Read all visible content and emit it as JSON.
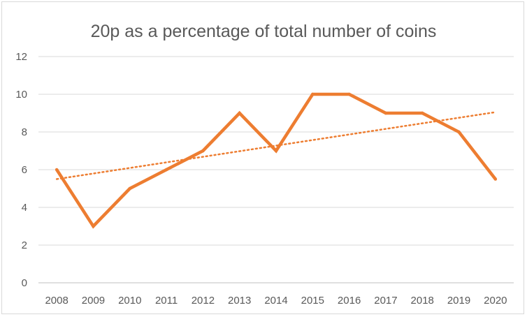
{
  "chart_data": {
    "type": "line",
    "title": "20p as a percentage of total number of coins",
    "xlabel": "",
    "ylabel": "",
    "categories": [
      "2008",
      "2009",
      "2010",
      "2011",
      "2012",
      "2013",
      "2014",
      "2015",
      "2016",
      "2017",
      "2018",
      "2019",
      "2020"
    ],
    "series": [
      {
        "values": [
          6,
          3,
          5,
          6,
          7,
          9,
          7,
          10,
          10,
          9,
          9,
          8,
          5.5
        ],
        "color": "#ED7D31"
      }
    ],
    "trendline": {
      "kind": "linear",
      "start": 5.5,
      "end": 9.05,
      "color": "#ED7D31",
      "style": "dotted"
    },
    "ylim": [
      0,
      12
    ],
    "yticks": [
      0,
      2,
      4,
      6,
      8,
      10,
      12
    ],
    "grid": true,
    "legend": "none"
  }
}
